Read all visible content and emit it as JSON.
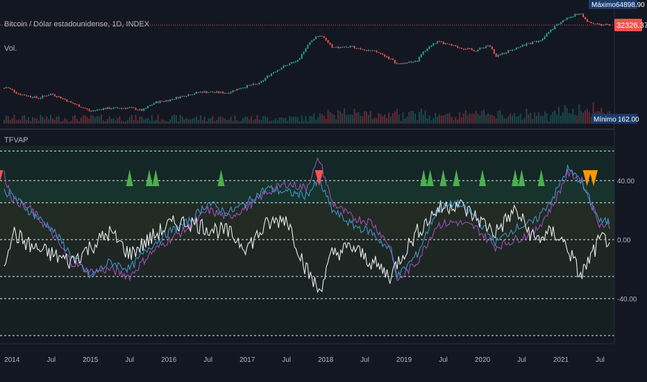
{
  "header": {
    "symbol_title": "Bitcoin / Dólar estadounidense, 1D, INDEX",
    "volume_label": "Vol."
  },
  "price_pane": {
    "max_label": "Máximo",
    "max_value": "64898.90",
    "min_label": "Mínimo",
    "min_value": "162.00",
    "last_price": "32326.37"
  },
  "indicator_pane": {
    "name": "TFVAP",
    "scale_labels": [
      "40.00",
      "0.00",
      "-40.00"
    ]
  },
  "time_axis": {
    "labels": [
      "2014",
      "Jul",
      "2015",
      "Jul",
      "2016",
      "Jul",
      "2017",
      "Jul",
      "2018",
      "Jul",
      "2019",
      "Jul",
      "2020",
      "Jul",
      "2021",
      "Jul"
    ]
  },
  "colors": {
    "background": "#131722",
    "up": "#26a69a",
    "down": "#ef5350",
    "purple_line": "#9c4fb8",
    "blue_line": "#3f93c8",
    "white_line": "#e9ecef",
    "green_signal": "#4caf50",
    "red_signal": "#f05350",
    "orange_signal": "#ff9800",
    "price_tag": "#f05350",
    "label_box": "#1b3a6b"
  },
  "chart_data": [
    {
      "type": "line",
      "title": "Bitcoin / Dólar estadounidense, 1D, INDEX",
      "x_range": [
        "2013-11",
        "2021-08"
      ],
      "y_scale": "log",
      "ylim": [
        162,
        64898.9
      ],
      "price_points": [
        {
          "x": "2013-11",
          "y": 600
        },
        {
          "x": "2013-12",
          "y": 900
        },
        {
          "x": "2014-02",
          "y": 600
        },
        {
          "x": "2014-05",
          "y": 470
        },
        {
          "x": "2014-07",
          "y": 600
        },
        {
          "x": "2014-10",
          "y": 360
        },
        {
          "x": "2015-01",
          "y": 220
        },
        {
          "x": "2015-03",
          "y": 260
        },
        {
          "x": "2015-07",
          "y": 270
        },
        {
          "x": "2015-09",
          "y": 230
        },
        {
          "x": "2015-11",
          "y": 370
        },
        {
          "x": "2016-01",
          "y": 420
        },
        {
          "x": "2016-06",
          "y": 680
        },
        {
          "x": "2016-10",
          "y": 640
        },
        {
          "x": "2017-01",
          "y": 950
        },
        {
          "x": "2017-03",
          "y": 1100
        },
        {
          "x": "2017-06",
          "y": 2600
        },
        {
          "x": "2017-09",
          "y": 4200
        },
        {
          "x": "2017-12",
          "y": 18000
        },
        {
          "x": "2018-02",
          "y": 8500
        },
        {
          "x": "2018-05",
          "y": 9000
        },
        {
          "x": "2018-09",
          "y": 6500
        },
        {
          "x": "2018-12",
          "y": 3300
        },
        {
          "x": "2019-03",
          "y": 4000
        },
        {
          "x": "2019-06",
          "y": 12000
        },
        {
          "x": "2019-09",
          "y": 9000
        },
        {
          "x": "2019-12",
          "y": 7200
        },
        {
          "x": "2020-02",
          "y": 10000
        },
        {
          "x": "2020-03",
          "y": 4900
        },
        {
          "x": "2020-07",
          "y": 9500
        },
        {
          "x": "2020-10",
          "y": 13500
        },
        {
          "x": "2020-12",
          "y": 28000
        },
        {
          "x": "2021-02",
          "y": 47000
        },
        {
          "x": "2021-04",
          "y": 63000
        },
        {
          "x": "2021-05",
          "y": 37000
        },
        {
          "x": "2021-07",
          "y": 32326
        }
      ],
      "series": [
        {
          "name": "Vol.",
          "kind": "histogram"
        }
      ]
    },
    {
      "type": "line",
      "title": "TFVAP",
      "ylim": [
        -50,
        60
      ],
      "levels": [
        60,
        40,
        25,
        0,
        -25,
        -40,
        -65
      ],
      "series": [
        {
          "name": "",
          "color": "purple_line",
          "points": [
            {
              "x": "2013-11",
              "y": 55
            },
            {
              "x": "2014-01",
              "y": 28
            },
            {
              "x": "2014-04",
              "y": 20
            },
            {
              "x": "2014-07",
              "y": 5
            },
            {
              "x": "2014-10",
              "y": -15
            },
            {
              "x": "2015-01",
              "y": -22
            },
            {
              "x": "2015-04",
              "y": -20
            },
            {
              "x": "2015-07",
              "y": -25
            },
            {
              "x": "2015-10",
              "y": -10
            },
            {
              "x": "2016-01",
              "y": 0
            },
            {
              "x": "2016-04",
              "y": 8
            },
            {
              "x": "2016-07",
              "y": 20
            },
            {
              "x": "2016-10",
              "y": 15
            },
            {
              "x": "2017-01",
              "y": 22
            },
            {
              "x": "2017-04",
              "y": 32
            },
            {
              "x": "2017-07",
              "y": 38
            },
            {
              "x": "2017-10",
              "y": 35
            },
            {
              "x": "2017-12",
              "y": 55
            },
            {
              "x": "2018-02",
              "y": 25
            },
            {
              "x": "2018-05",
              "y": 15
            },
            {
              "x": "2018-08",
              "y": 12
            },
            {
              "x": "2018-11",
              "y": -5
            },
            {
              "x": "2018-12",
              "y": -28
            },
            {
              "x": "2019-03",
              "y": -15
            },
            {
              "x": "2019-06",
              "y": 10
            },
            {
              "x": "2019-09",
              "y": 12
            },
            {
              "x": "2019-12",
              "y": 8
            },
            {
              "x": "2020-03",
              "y": -5
            },
            {
              "x": "2020-06",
              "y": 0
            },
            {
              "x": "2020-09",
              "y": 5
            },
            {
              "x": "2020-12",
              "y": 25
            },
            {
              "x": "2021-02",
              "y": 45
            },
            {
              "x": "2021-04",
              "y": 42
            },
            {
              "x": "2021-07",
              "y": 10
            }
          ]
        },
        {
          "name": "",
          "color": "blue_line",
          "points": [
            {
              "x": "2013-11",
              "y": 35
            },
            {
              "x": "2014-01",
              "y": 30
            },
            {
              "x": "2014-04",
              "y": 18
            },
            {
              "x": "2014-07",
              "y": 8
            },
            {
              "x": "2014-10",
              "y": -10
            },
            {
              "x": "2015-01",
              "y": -25
            },
            {
              "x": "2015-04",
              "y": -15
            },
            {
              "x": "2015-07",
              "y": -20
            },
            {
              "x": "2015-10",
              "y": -5
            },
            {
              "x": "2016-01",
              "y": 5
            },
            {
              "x": "2016-04",
              "y": 12
            },
            {
              "x": "2016-07",
              "y": 25
            },
            {
              "x": "2016-10",
              "y": 18
            },
            {
              "x": "2017-01",
              "y": 25
            },
            {
              "x": "2017-04",
              "y": 35
            },
            {
              "x": "2017-07",
              "y": 32
            },
            {
              "x": "2017-10",
              "y": 30
            },
            {
              "x": "2017-12",
              "y": 40
            },
            {
              "x": "2018-02",
              "y": 20
            },
            {
              "x": "2018-05",
              "y": 10
            },
            {
              "x": "2018-08",
              "y": 5
            },
            {
              "x": "2018-11",
              "y": -8
            },
            {
              "x": "2018-12",
              "y": -25
            },
            {
              "x": "2019-03",
              "y": -10
            },
            {
              "x": "2019-06",
              "y": 20
            },
            {
              "x": "2019-09",
              "y": 25
            },
            {
              "x": "2019-12",
              "y": 15
            },
            {
              "x": "2020-03",
              "y": -2
            },
            {
              "x": "2020-06",
              "y": 8
            },
            {
              "x": "2020-09",
              "y": 12
            },
            {
              "x": "2020-12",
              "y": 30
            },
            {
              "x": "2021-02",
              "y": 48
            },
            {
              "x": "2021-04",
              "y": 40
            },
            {
              "x": "2021-07",
              "y": 12
            }
          ]
        },
        {
          "name": "",
          "color": "white_line",
          "points": [
            {
              "x": "2013-11",
              "y": -30
            },
            {
              "x": "2014-01",
              "y": 5
            },
            {
              "x": "2014-04",
              "y": -5
            },
            {
              "x": "2014-07",
              "y": -10
            },
            {
              "x": "2014-10",
              "y": -15
            },
            {
              "x": "2015-01",
              "y": -5
            },
            {
              "x": "2015-04",
              "y": 5
            },
            {
              "x": "2015-07",
              "y": -10
            },
            {
              "x": "2015-10",
              "y": 0
            },
            {
              "x": "2016-01",
              "y": 10
            },
            {
              "x": "2016-04",
              "y": 12
            },
            {
              "x": "2016-07",
              "y": 8
            },
            {
              "x": "2016-10",
              "y": 5
            },
            {
              "x": "2017-01",
              "y": -5
            },
            {
              "x": "2017-04",
              "y": 10
            },
            {
              "x": "2017-07",
              "y": 15
            },
            {
              "x": "2017-10",
              "y": -20
            },
            {
              "x": "2017-12",
              "y": -35
            },
            {
              "x": "2018-02",
              "y": -10
            },
            {
              "x": "2018-05",
              "y": -5
            },
            {
              "x": "2018-08",
              "y": -15
            },
            {
              "x": "2018-11",
              "y": -25
            },
            {
              "x": "2018-12",
              "y": -15
            },
            {
              "x": "2019-03",
              "y": 5
            },
            {
              "x": "2019-06",
              "y": 20
            },
            {
              "x": "2019-09",
              "y": 25
            },
            {
              "x": "2019-12",
              "y": 15
            },
            {
              "x": "2020-03",
              "y": 5
            },
            {
              "x": "2020-06",
              "y": 20
            },
            {
              "x": "2020-09",
              "y": 0
            },
            {
              "x": "2020-12",
              "y": 5
            },
            {
              "x": "2021-02",
              "y": -5
            },
            {
              "x": "2021-04",
              "y": -25
            },
            {
              "x": "2021-07",
              "y": 0
            }
          ]
        }
      ],
      "signals": [
        {
          "x": "2013-11",
          "kind": "down",
          "color": "red_signal"
        },
        {
          "x": "2015-07",
          "kind": "up",
          "color": "green_signal"
        },
        {
          "x": "2015-10",
          "kind": "up",
          "color": "green_signal"
        },
        {
          "x": "2015-11",
          "kind": "up",
          "color": "green_signal"
        },
        {
          "x": "2016-09",
          "kind": "up",
          "color": "green_signal"
        },
        {
          "x": "2017-12",
          "kind": "down",
          "color": "red_signal"
        },
        {
          "x": "2019-04",
          "kind": "up",
          "color": "green_signal"
        },
        {
          "x": "2019-05",
          "kind": "up",
          "color": "green_signal"
        },
        {
          "x": "2019-07",
          "kind": "up",
          "color": "green_signal"
        },
        {
          "x": "2019-09",
          "kind": "up",
          "color": "green_signal"
        },
        {
          "x": "2020-01",
          "kind": "up",
          "color": "green_signal"
        },
        {
          "x": "2020-06",
          "kind": "up",
          "color": "green_signal"
        },
        {
          "x": "2020-07",
          "kind": "up",
          "color": "green_signal"
        },
        {
          "x": "2020-10",
          "kind": "up",
          "color": "green_signal"
        },
        {
          "x": "2021-05",
          "kind": "down",
          "color": "orange_signal"
        },
        {
          "x": "2021-06",
          "kind": "down",
          "color": "orange_signal"
        }
      ]
    }
  ]
}
